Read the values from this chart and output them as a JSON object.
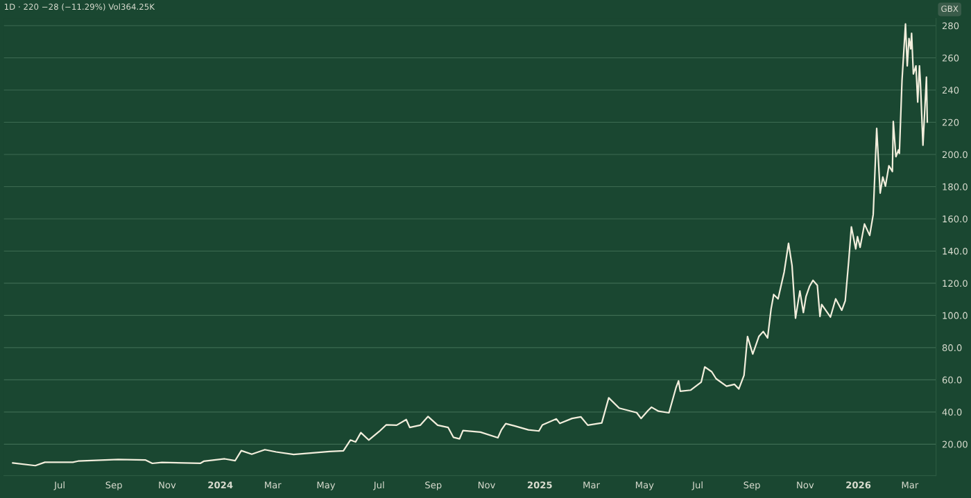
{
  "chart_data": {
    "type": "line",
    "title": "1D · 220 −28 (−11.29%) Vol364.25K",
    "annotations": [
      "GBX"
    ],
    "x": [
      "2023-05-08",
      "2023-06-03",
      "2023-06-14",
      "2023-07-16",
      "2023-07-22",
      "2023-09-06",
      "2023-10-07",
      "2023-10-15",
      "2023-10-26",
      "2023-12-09",
      "2023-12-13",
      "2024-01-06",
      "2024-01-18",
      "2024-01-25",
      "2024-02-06",
      "2024-02-21",
      "2024-03-05",
      "2024-03-25",
      "2024-05-05",
      "2024-05-21",
      "2024-05-29",
      "2024-06-04",
      "2024-06-10",
      "2024-06-19",
      "2024-07-01",
      "2024-07-09",
      "2024-07-21",
      "2024-08-01",
      "2024-08-05",
      "2024-08-17",
      "2024-08-26",
      "2024-09-06",
      "2024-09-18",
      "2024-09-24",
      "2024-10-01",
      "2024-10-05",
      "2024-10-25",
      "2024-11-14",
      "2024-11-18",
      "2024-11-23",
      "2024-12-03",
      "2024-12-19",
      "2024-12-31",
      "2025-01-04",
      "2025-01-20",
      "2025-01-24",
      "2025-02-07",
      "2025-02-17",
      "2025-02-25",
      "2025-03-13",
      "2025-03-21",
      "2025-04-02",
      "2025-04-22",
      "2025-04-27",
      "2025-05-05",
      "2025-05-09",
      "2025-05-17",
      "2025-05-29",
      "2025-06-06",
      "2025-06-09",
      "2025-06-11",
      "2025-06-23",
      "2025-07-05",
      "2025-07-09",
      "2025-07-17",
      "2025-07-22",
      "2025-08-03",
      "2025-08-12",
      "2025-08-17",
      "2025-08-23",
      "2025-08-27",
      "2025-09-02",
      "2025-09-09",
      "2025-09-14",
      "2025-09-19",
      "2025-09-23",
      "2025-09-26",
      "2025-10-01",
      "2025-10-08",
      "2025-10-13",
      "2025-10-17",
      "2025-10-21",
      "2025-10-26",
      "2025-10-30",
      "2025-11-02",
      "2025-11-06",
      "2025-11-10",
      "2025-11-15",
      "2025-11-18",
      "2025-11-20",
      "2025-11-30",
      "2025-12-06",
      "2025-12-13",
      "2025-12-17",
      "2025-12-21",
      "2025-12-24",
      "2025-12-29",
      "2025-12-31",
      "2026-01-03",
      "2026-01-08",
      "2026-01-14",
      "2026-01-18",
      "2026-01-22",
      "2026-01-26",
      "2026-01-29",
      "2026-02-01",
      "2026-02-05",
      "2026-02-09",
      "2026-02-10",
      "2026-02-13",
      "2026-02-16",
      "2026-02-17",
      "2026-02-20",
      "2026-02-24",
      "2026-02-26",
      "2026-02-28",
      "2026-03-02",
      "2026-03-03",
      "2026-03-05",
      "2026-03-08",
      "2026-03-10",
      "2026-03-12",
      "2026-03-13",
      "2026-03-16",
      "2026-03-20",
      "2026-03-21"
    ],
    "series": [
      {
        "color": "#f2eedc",
        "values": [
          8.4,
          6.7,
          8.8,
          8.8,
          9.5,
          10.5,
          10.2,
          8.1,
          8.7,
          8.1,
          9.4,
          10.9,
          9.8,
          16,
          13.8,
          16.6,
          15.2,
          13.6,
          15.5,
          15.9,
          22.6,
          21.4,
          27.2,
          22.6,
          27.9,
          32,
          31.8,
          35.3,
          30.4,
          31.8,
          37.2,
          31.8,
          30.4,
          24.3,
          23.3,
          28.5,
          27.5,
          24,
          28.9,
          32.8,
          31.4,
          28.9,
          28.2,
          32,
          35.7,
          32.9,
          36,
          37,
          31.8,
          33.2,
          48.8,
          42.4,
          39.6,
          36,
          40.9,
          43,
          40.5,
          39.5,
          55,
          59.3,
          52.9,
          53.6,
          58.6,
          68,
          65,
          60.7,
          56,
          57.2,
          54.3,
          62.8,
          86.9,
          76,
          86.9,
          90,
          86,
          104,
          113,
          110.3,
          127,
          144.8,
          131,
          98.3,
          115.2,
          101.8,
          111.7,
          118,
          121.8,
          118.7,
          99.4,
          106.8,
          99,
          110.3,
          103.2,
          109.2,
          134.2,
          155,
          141.3,
          149,
          142.3,
          156.8,
          149.7,
          162.6,
          216.2,
          176,
          186,
          180.3,
          193,
          189.4,
          220.5,
          198.6,
          202.8,
          200.7,
          245.9,
          281.1,
          255,
          272,
          265.6,
          275.2,
          250,
          255,
          232.5,
          255,
          245.9,
          205.7,
          248,
          220
        ]
      }
    ],
    "xlim": [
      "2023-04-28",
      "2026-03-31"
    ],
    "xticks": [
      {
        "value": "2023-07-01",
        "label": "Jul"
      },
      {
        "value": "2023-09-01",
        "label": "Sep"
      },
      {
        "value": "2023-11-01",
        "label": "Nov"
      },
      {
        "value": "2024-01-01",
        "label": "2024"
      },
      {
        "value": "2024-03-01",
        "label": "Mar"
      },
      {
        "value": "2024-05-01",
        "label": "May"
      },
      {
        "value": "2024-07-01",
        "label": "Jul"
      },
      {
        "value": "2024-09-01",
        "label": "Sep"
      },
      {
        "value": "2024-11-01",
        "label": "Nov"
      },
      {
        "value": "2025-01-01",
        "label": "2025"
      },
      {
        "value": "2025-03-01",
        "label": "Mar"
      },
      {
        "value": "2025-05-01",
        "label": "May"
      },
      {
        "value": "2025-07-01",
        "label": "Jul"
      },
      {
        "value": "2025-09-01",
        "label": "Sep"
      },
      {
        "value": "2025-11-01",
        "label": "Nov"
      },
      {
        "value": "2026-01-01",
        "label": "2026"
      },
      {
        "value": "2026-03-01",
        "label": "Mar"
      }
    ],
    "ylim": [
      0.5,
      284.5
    ],
    "yticks": [
      {
        "value": 20,
        "label": "20.00"
      },
      {
        "value": 40,
        "label": "40.0"
      },
      {
        "value": 60,
        "label": "60.0"
      },
      {
        "value": 80,
        "label": "80.0"
      },
      {
        "value": 100,
        "label": "100.0"
      },
      {
        "value": 120,
        "label": "120.0"
      },
      {
        "value": 140,
        "label": "140.0"
      },
      {
        "value": 160,
        "label": "160.0"
      },
      {
        "value": 180,
        "label": "180.0"
      },
      {
        "value": 200,
        "label": "200.0"
      },
      220,
      240,
      260,
      280
    ],
    "grid": "y",
    "legend": false
  }
}
